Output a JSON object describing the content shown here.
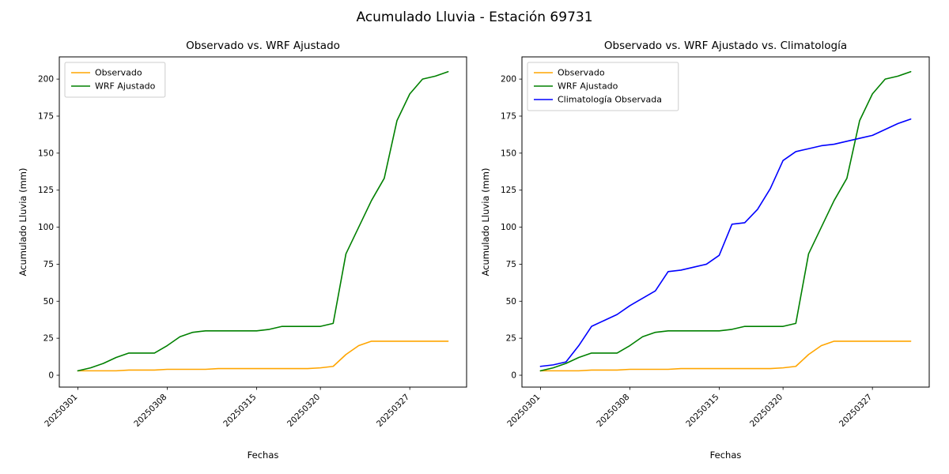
{
  "figure": {
    "title": "Acumulado Lluvia - Estación 69731",
    "background": "#ffffff",
    "text_color": "#000000"
  },
  "chart_data": [
    {
      "type": "line",
      "title": "Observado vs. WRF Ajustado",
      "xlabel": "Fechas",
      "ylabel": "Acumulado Lluvia (mm)",
      "legend_position": "upper-left",
      "grid": false,
      "ylim": [
        -8,
        215
      ],
      "yticks": [
        0,
        25,
        50,
        75,
        100,
        125,
        150,
        175,
        200
      ],
      "xtick_labels": [
        "20250301",
        "20250308",
        "20250315",
        "20250320",
        "20250327"
      ],
      "categories": [
        "20250301",
        "20250302",
        "20250303",
        "20250304",
        "20250305",
        "20250306",
        "20250307",
        "20250308",
        "20250309",
        "20250310",
        "20250311",
        "20250312",
        "20250313",
        "20250314",
        "20250315",
        "20250316",
        "20250317",
        "20250318",
        "20250319",
        "20250320",
        "20250321",
        "20250322",
        "20250323",
        "20250324",
        "20250325",
        "20250326",
        "20250327",
        "20250328",
        "20250329",
        "20250330"
      ],
      "series": [
        {
          "name": "Observado",
          "color": "#ffa500",
          "values": [
            3,
            3,
            3,
            3,
            3.5,
            3.5,
            3.5,
            4,
            4,
            4,
            4,
            4.5,
            4.5,
            4.5,
            4.5,
            4.5,
            4.5,
            4.5,
            4.5,
            5,
            6,
            14,
            20,
            23,
            23,
            23,
            23,
            23,
            23,
            23
          ]
        },
        {
          "name": "WRF Ajustado",
          "color": "#008000",
          "values": [
            3,
            5,
            8,
            12,
            15,
            15,
            15,
            20,
            26,
            29,
            30,
            30,
            30,
            30,
            30,
            31,
            33,
            33,
            33,
            33,
            35,
            82,
            100,
            118,
            133,
            172,
            190,
            200,
            202,
            205
          ]
        }
      ]
    },
    {
      "type": "line",
      "title": "Observado vs. WRF Ajustado vs. Climatología",
      "xlabel": "Fechas",
      "ylabel": "Acumulado Lluvia (mm)",
      "legend_position": "upper-left",
      "grid": false,
      "ylim": [
        -8,
        215
      ],
      "yticks": [
        0,
        25,
        50,
        75,
        100,
        125,
        150,
        175,
        200
      ],
      "xtick_labels": [
        "20250301",
        "20250308",
        "20250315",
        "20250320",
        "20250327"
      ],
      "categories": [
        "20250301",
        "20250302",
        "20250303",
        "20250304",
        "20250305",
        "20250306",
        "20250307",
        "20250308",
        "20250309",
        "20250310",
        "20250311",
        "20250312",
        "20250313",
        "20250314",
        "20250315",
        "20250316",
        "20250317",
        "20250318",
        "20250319",
        "20250320",
        "20250321",
        "20250322",
        "20250323",
        "20250324",
        "20250325",
        "20250326",
        "20250327",
        "20250328",
        "20250329",
        "20250330"
      ],
      "series": [
        {
          "name": "Observado",
          "color": "#ffa500",
          "values": [
            3,
            3,
            3,
            3,
            3.5,
            3.5,
            3.5,
            4,
            4,
            4,
            4,
            4.5,
            4.5,
            4.5,
            4.5,
            4.5,
            4.5,
            4.5,
            4.5,
            5,
            6,
            14,
            20,
            23,
            23,
            23,
            23,
            23,
            23,
            23
          ]
        },
        {
          "name": "WRF Ajustado",
          "color": "#008000",
          "values": [
            3,
            5,
            8,
            12,
            15,
            15,
            15,
            20,
            26,
            29,
            30,
            30,
            30,
            30,
            30,
            31,
            33,
            33,
            33,
            33,
            35,
            82,
            100,
            118,
            133,
            172,
            190,
            200,
            202,
            205
          ]
        },
        {
          "name": "Climatología Observada",
          "color": "#0000ff",
          "values": [
            6,
            7,
            9,
            20,
            33,
            37,
            41,
            47,
            52,
            57,
            70,
            71,
            73,
            75,
            81,
            102,
            103,
            112,
            126,
            145,
            151,
            153,
            155,
            156,
            158,
            160,
            162,
            166,
            170,
            173
          ]
        }
      ]
    }
  ]
}
